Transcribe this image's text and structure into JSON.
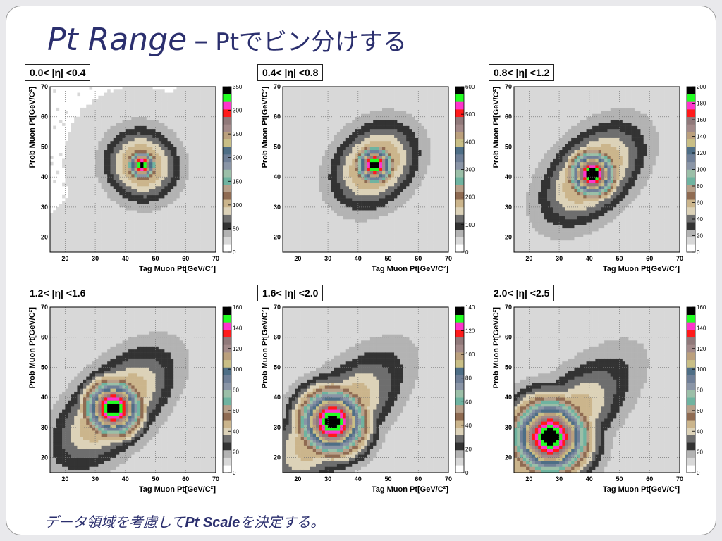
{
  "slide": {
    "title_main": "Pt Range",
    "title_dash": "–",
    "title_sub": "Ptでビン分けする",
    "footer_a": "データ領域を考慮して",
    "footer_b": "Pt Scale",
    "footer_c": "を決定する。"
  },
  "chart_data": [
    {
      "type": "heatmap",
      "title": "0.0< |η| <0.4",
      "xlabel": "Tag Muon Pt[GeV/C²]",
      "ylabel": "Prob Muon Pt[GeV/C²]",
      "xlim": [
        15,
        70
      ],
      "ylim": [
        15,
        70
      ],
      "xticks": [
        "20",
        "30",
        "40",
        "50",
        "60",
        "70"
      ],
      "yticks": [
        "20",
        "30",
        "40",
        "50",
        "60",
        "70"
      ],
      "zticks": [
        "0",
        "50",
        "100",
        "150",
        "200",
        "250",
        "300",
        "350"
      ],
      "zmax": 350,
      "peak": {
        "x": 45.5,
        "y": 44.0
      }
    },
    {
      "type": "heatmap",
      "title": "0.4< |η| <0.8",
      "xlabel": "Tag Muon Pt[GeV/C²]",
      "ylabel": "Prob Muon Pt[GeV/C²]",
      "xlim": [
        15,
        70
      ],
      "ylim": [
        15,
        70
      ],
      "xticks": [
        "20",
        "30",
        "40",
        "50",
        "60",
        "70"
      ],
      "yticks": [
        "20",
        "30",
        "40",
        "50",
        "60",
        "70"
      ],
      "zticks": [
        "0",
        "100",
        "200",
        "300",
        "400",
        "500",
        "600"
      ],
      "zmax": 600,
      "peak": {
        "x": 45.5,
        "y": 44.0
      }
    },
    {
      "type": "heatmap",
      "title": "0.8< |η| <1.2",
      "xlabel": "Tag Muon Pt[GeV/C²]",
      "ylabel": "Prob Muon Pt[GeV/C²]",
      "xlim": [
        15,
        70
      ],
      "ylim": [
        15,
        70
      ],
      "xticks": [
        "20",
        "30",
        "40",
        "50",
        "60",
        "70"
      ],
      "yticks": [
        "20",
        "30",
        "40",
        "50",
        "60",
        "70"
      ],
      "zticks": [
        "0",
        "20",
        "40",
        "60",
        "80",
        "100",
        "120",
        "140",
        "160",
        "180",
        "200"
      ],
      "zmax": 200,
      "peak": {
        "x": 41.0,
        "y": 41.0
      }
    },
    {
      "type": "heatmap",
      "title": "1.2< |η| <1.6",
      "xlabel": "Tag Muon Pt[GeV/C²]",
      "ylabel": "Prob Muon Pt[GeV/C²]",
      "xlim": [
        15,
        70
      ],
      "ylim": [
        15,
        70
      ],
      "xticks": [
        "20",
        "30",
        "40",
        "50",
        "60",
        "70"
      ],
      "yticks": [
        "20",
        "30",
        "40",
        "50",
        "60",
        "70"
      ],
      "zticks": [
        "0",
        "20",
        "40",
        "60",
        "80",
        "100",
        "120",
        "140",
        "160"
      ],
      "zmax": 160,
      "peak": {
        "x": 36.0,
        "y": 36.5
      }
    },
    {
      "type": "heatmap",
      "title": "1.6< |η| <2.0",
      "xlabel": "Tag Muon Pt[GeV/C²]",
      "ylabel": "Prob Muon Pt[GeV/C²]",
      "xlim": [
        15,
        70
      ],
      "ylim": [
        15,
        70
      ],
      "xticks": [
        "20",
        "30",
        "40",
        "50",
        "60",
        "70"
      ],
      "yticks": [
        "20",
        "30",
        "40",
        "50",
        "60",
        "70"
      ],
      "zticks": [
        "0",
        "20",
        "40",
        "60",
        "80",
        "100",
        "120",
        "140"
      ],
      "zmax": 140,
      "peak": {
        "x": 31.5,
        "y": 32.0
      }
    },
    {
      "type": "heatmap",
      "title": "2.0< |η| <2.5",
      "xlabel": "Tag Muon Pt[GeV/C²]",
      "ylabel": "Prob Muon Pt[GeV/C²]",
      "xlim": [
        15,
        70
      ],
      "ylim": [
        15,
        70
      ],
      "xticks": [
        "20",
        "30",
        "40",
        "50",
        "60",
        "70"
      ],
      "yticks": [
        "20",
        "30",
        "40",
        "50",
        "60",
        "70"
      ],
      "zticks": [
        "0",
        "20",
        "40",
        "60",
        "80",
        "100",
        "120",
        "140",
        "160"
      ],
      "zmax": 160,
      "peak": {
        "x": 27.0,
        "y": 27.0
      }
    }
  ]
}
